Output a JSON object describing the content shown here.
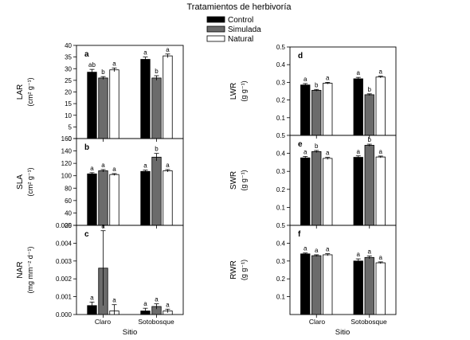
{
  "title": "Tratamientos de herbivoría",
  "legend": [
    {
      "name": "Control",
      "color": "#000000"
    },
    {
      "name": "Simulada",
      "color": "#6b6b6b"
    },
    {
      "name": "Natural",
      "color": "#ffffff"
    }
  ],
  "xlabel": "Sitio",
  "chart_data": [
    {
      "type": "bar",
      "panel": "a",
      "ylabel_main": "LAR",
      "ylabel_unit": "(cm² g⁻¹)",
      "categories": [
        "Claro",
        "Sotobosque"
      ],
      "ylim": [
        0,
        40
      ],
      "yticks": [
        "0",
        "5",
        "10",
        "15",
        "20",
        "25",
        "30",
        "35",
        "40"
      ],
      "series": [
        {
          "name": "Control",
          "values": [
            28.5,
            34.0
          ],
          "errors": [
            1.2,
            1.0
          ],
          "letters": [
            "ab",
            "a"
          ]
        },
        {
          "name": "Simulada",
          "values": [
            26.0,
            26.0
          ],
          "errors": [
            0.6,
            1.0
          ],
          "letters": [
            "b",
            "b"
          ]
        },
        {
          "name": "Natural",
          "values": [
            29.5,
            35.5
          ],
          "errors": [
            0.8,
            0.8
          ],
          "letters": [
            "a",
            "a"
          ]
        }
      ]
    },
    {
      "type": "bar",
      "panel": "b",
      "ylabel_main": "SLA",
      "ylabel_unit": "(cm² g⁻¹)",
      "categories": [
        "Claro",
        "Sotobosque"
      ],
      "ylim": [
        20,
        160
      ],
      "yticks": [
        "20",
        "40",
        "60",
        "80",
        "100",
        "120",
        "140",
        "160"
      ],
      "series": [
        {
          "name": "Control",
          "values": [
            103,
            107
          ],
          "errors": [
            2,
            2
          ],
          "letters": [
            "a",
            "a"
          ]
        },
        {
          "name": "Simulada",
          "values": [
            108,
            130
          ],
          "errors": [
            2,
            6
          ],
          "letters": [
            "a",
            "b"
          ]
        },
        {
          "name": "Natural",
          "values": [
            102,
            108
          ],
          "errors": [
            1.5,
            2
          ],
          "letters": [
            "a",
            "a"
          ]
        }
      ]
    },
    {
      "type": "bar",
      "panel": "c",
      "ylabel_main": "NAR",
      "ylabel_unit": "(mg mm⁻² d⁻¹)",
      "categories": [
        "Claro",
        "Sotobosque"
      ],
      "ylim": [
        0,
        0.005
      ],
      "yticks": [
        "0.000",
        "0.001",
        "0.002",
        "0.003",
        "0.004",
        "0.005"
      ],
      "series": [
        {
          "name": "Control",
          "values": [
            0.0005,
            0.0002
          ],
          "errors": [
            0.0002,
            0.00015
          ],
          "letters": [
            "a",
            "a"
          ]
        },
        {
          "name": "Simulada",
          "values": [
            0.0026,
            0.00045
          ],
          "errors": [
            0.0021,
            0.00015
          ],
          "letters": [
            "a",
            "a"
          ]
        },
        {
          "name": "Natural",
          "values": [
            0.0002,
            0.0002
          ],
          "errors": [
            0.00035,
            0.0001
          ],
          "letters": [
            "a",
            "a"
          ]
        }
      ]
    },
    {
      "type": "bar",
      "panel": "d",
      "ylabel_main": "LWR",
      "ylabel_unit": "(g g⁻¹)",
      "categories": [
        "Claro",
        "Sotobosque"
      ],
      "ylim": [
        0,
        0.5
      ],
      "yticks": [
        "0.1",
        "0.2",
        "0.3",
        "0.4",
        "0.5"
      ],
      "ytick_values": [
        0.1,
        0.2,
        0.3,
        0.4,
        0.5
      ],
      "series": [
        {
          "name": "Control",
          "values": [
            0.285,
            0.32
          ],
          "errors": [
            0.008,
            0.008
          ],
          "letters": [
            "a",
            "a"
          ]
        },
        {
          "name": "Simulada",
          "values": [
            0.255,
            0.23
          ],
          "errors": [
            0.005,
            0.005
          ],
          "letters": [
            "b",
            "b"
          ]
        },
        {
          "name": "Natural",
          "values": [
            0.295,
            0.33
          ],
          "errors": [
            0.005,
            0.005
          ],
          "letters": [
            "a",
            "a"
          ]
        }
      ]
    },
    {
      "type": "bar",
      "panel": "e",
      "ylabel_main": "SWR",
      "ylabel_unit": "(g g⁻¹)",
      "categories": [
        "Claro",
        "Sotobosque"
      ],
      "ylim": [
        0,
        0.5
      ],
      "yticks": [
        "0.1",
        "0.2",
        "0.3",
        "0.4",
        "0.5"
      ],
      "ytick_values": [
        0.1,
        0.2,
        0.3,
        0.4,
        0.5
      ],
      "series": [
        {
          "name": "Control",
          "values": [
            0.375,
            0.378
          ],
          "errors": [
            0.008,
            0.008
          ],
          "letters": [
            "a",
            "a"
          ]
        },
        {
          "name": "Simulada",
          "values": [
            0.41,
            0.445
          ],
          "errors": [
            0.006,
            0.006
          ],
          "letters": [
            "b",
            "b"
          ]
        },
        {
          "name": "Natural",
          "values": [
            0.372,
            0.38
          ],
          "errors": [
            0.006,
            0.005
          ],
          "letters": [
            "a",
            "a"
          ]
        }
      ]
    },
    {
      "type": "bar",
      "panel": "f",
      "ylabel_main": "RWR",
      "ylabel_unit": "(g g⁻¹)",
      "categories": [
        "Claro",
        "Sotobosque"
      ],
      "ylim": [
        0,
        0.5
      ],
      "yticks": [
        "0.1",
        "0.2",
        "0.3",
        "0.4",
        "0.5"
      ],
      "ytick_values": [
        0.1,
        0.2,
        0.3,
        0.4,
        0.5
      ],
      "series": [
        {
          "name": "Control",
          "values": [
            0.34,
            0.3
          ],
          "errors": [
            0.005,
            0.012
          ],
          "letters": [
            "a",
            "a"
          ]
        },
        {
          "name": "Simulada",
          "values": [
            0.33,
            0.32
          ],
          "errors": [
            0.005,
            0.008
          ],
          "letters": [
            "a",
            "a"
          ]
        },
        {
          "name": "Natural",
          "values": [
            0.335,
            0.29
          ],
          "errors": [
            0.006,
            0.005
          ],
          "letters": [
            "a",
            "a"
          ]
        }
      ]
    }
  ]
}
